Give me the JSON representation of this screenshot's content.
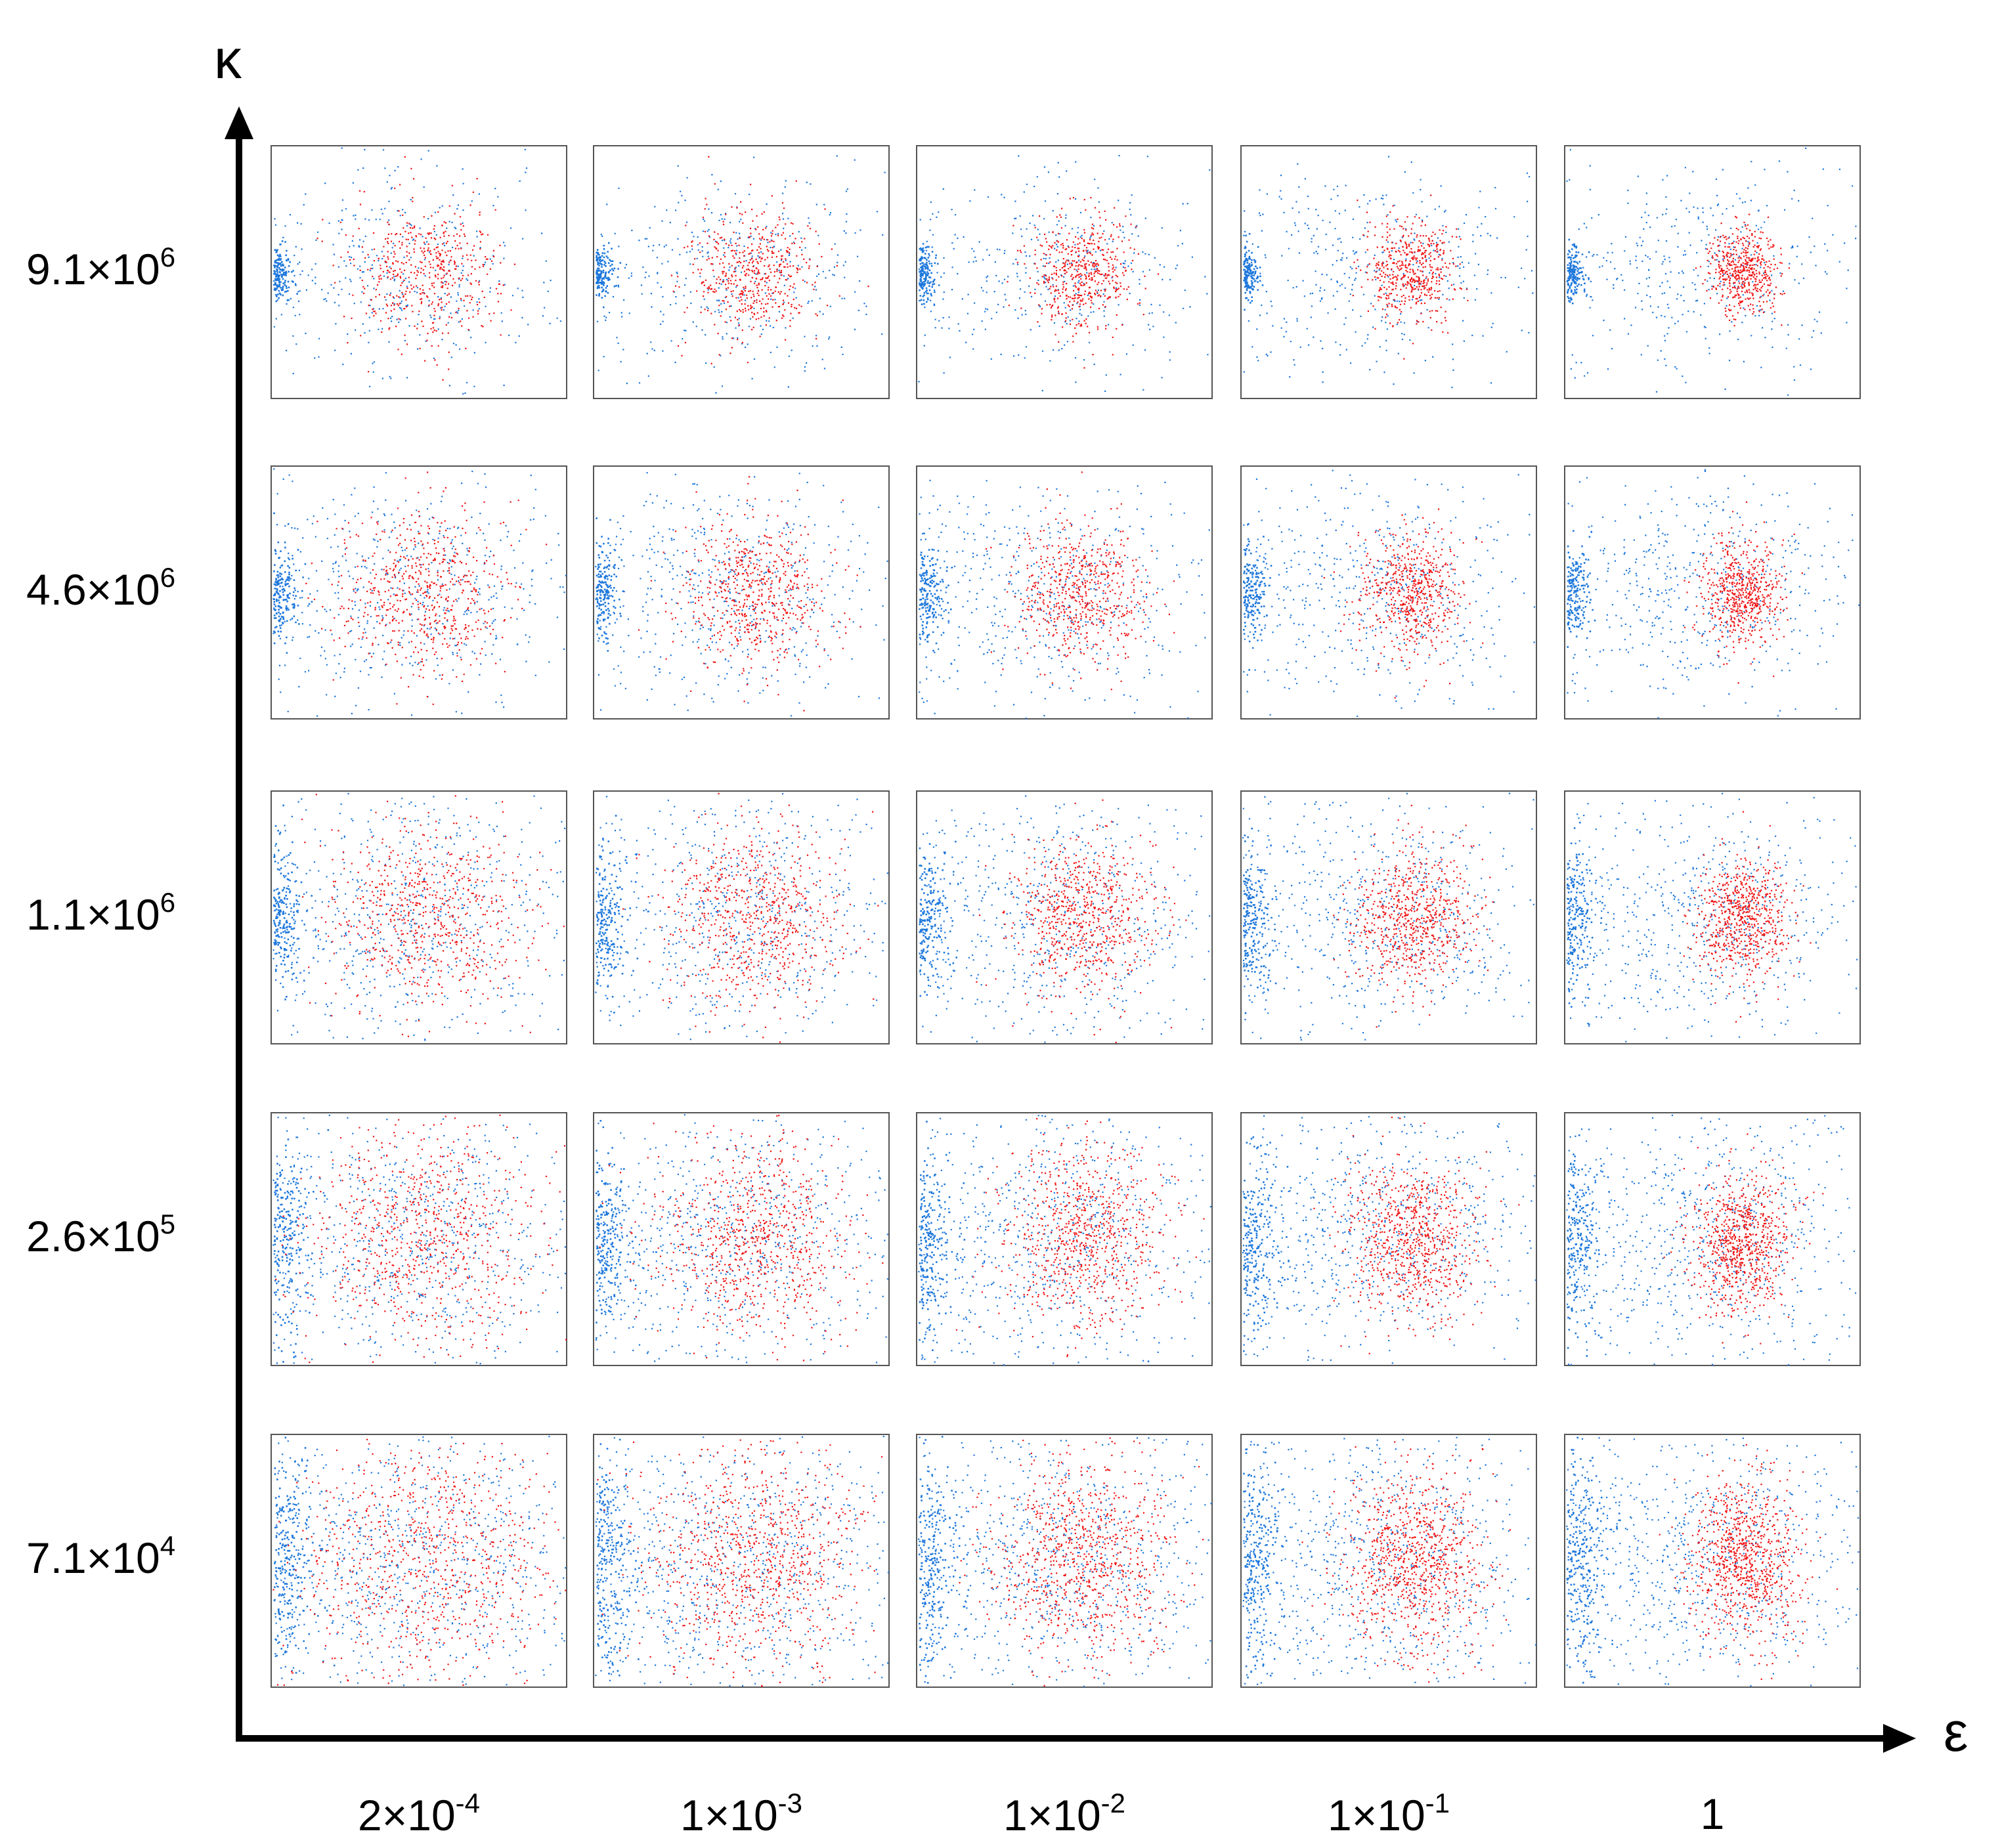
{
  "axes": {
    "y_label": "κ",
    "x_label": "ε"
  },
  "rows": [
    {
      "mantissa": "9.1×10",
      "exp": "6"
    },
    {
      "mantissa": "4.6×10",
      "exp": "6"
    },
    {
      "mantissa": "1.1×10",
      "exp": "6"
    },
    {
      "mantissa": "2.6×10",
      "exp": "5"
    },
    {
      "mantissa": "7.1×10",
      "exp": "4"
    }
  ],
  "cols": [
    {
      "mantissa": "2×10",
      "exp": "-4"
    },
    {
      "mantissa": "1×10",
      "exp": "-3"
    },
    {
      "mantissa": "1×10",
      "exp": "-2"
    },
    {
      "mantissa": "1×10",
      "exp": "-1"
    },
    {
      "mantissa": "1",
      "exp": ""
    }
  ],
  "colors": {
    "blue": "#1e78dc",
    "red": "#f01414",
    "axis": "#000000",
    "frame": "#555555"
  }
}
